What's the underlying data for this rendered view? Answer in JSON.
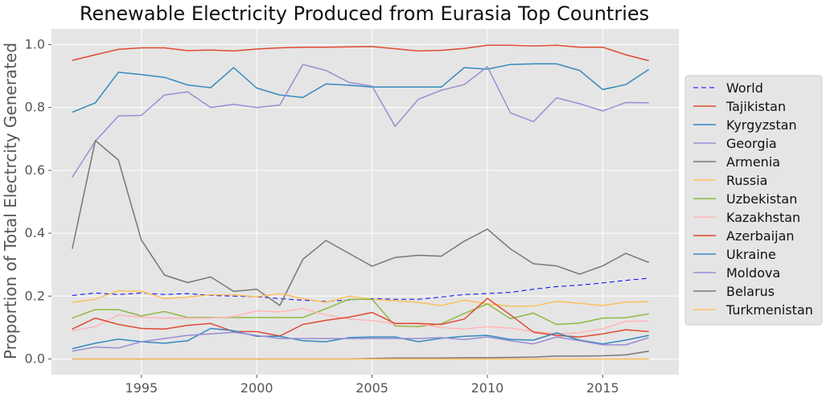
{
  "chart_data": {
    "type": "line",
    "title": "Renewable Electricity Produced from Eurasia Top Countries",
    "xlabel": "",
    "ylabel": "Proportion of Total Electrcity Generated",
    "xlim": [
      1991.1,
      2018.3
    ],
    "ylim": [
      -0.05,
      1.05
    ],
    "xticks": [
      1995,
      2000,
      2005,
      2010,
      2015
    ],
    "yticks": [
      0.0,
      0.2,
      0.4,
      0.6,
      0.8,
      1.0
    ],
    "ytick_labels": [
      "0.0",
      "0.2",
      "0.4",
      "0.6",
      "0.8",
      "1.0"
    ],
    "legend_position": "right",
    "x": [
      1992,
      1993,
      1994,
      1995,
      1996,
      1997,
      1998,
      1999,
      2000,
      2001,
      2002,
      2003,
      2004,
      2005,
      2006,
      2007,
      2008,
      2009,
      2010,
      2011,
      2012,
      2013,
      2014,
      2015,
      2016,
      2017
    ],
    "series": [
      {
        "name": "World",
        "color": "#0000ff",
        "dashed": true,
        "values": [
          0.202,
          0.21,
          0.205,
          0.21,
          0.205,
          0.208,
          0.202,
          0.2,
          0.198,
          0.192,
          0.187,
          0.183,
          0.188,
          0.192,
          0.19,
          0.19,
          0.197,
          0.205,
          0.208,
          0.212,
          0.222,
          0.23,
          0.235,
          0.242,
          0.25,
          0.257
        ]
      },
      {
        "name": "Tajikistan",
        "color": "#E24A33",
        "values": [
          0.95,
          0.968,
          0.985,
          0.99,
          0.99,
          0.981,
          0.983,
          0.98,
          0.986,
          0.99,
          0.992,
          0.992,
          0.993,
          0.994,
          0.987,
          0.98,
          0.982,
          0.988,
          0.998,
          0.998,
          0.996,
          0.998,
          0.992,
          0.992,
          0.968,
          0.949
        ]
      },
      {
        "name": "Kyrgyzstan",
        "color": "#348ABD",
        "values": [
          0.785,
          0.815,
          0.912,
          0.905,
          0.896,
          0.872,
          0.863,
          0.927,
          0.862,
          0.84,
          0.832,
          0.875,
          0.871,
          0.865,
          0.865,
          0.865,
          0.865,
          0.927,
          0.922,
          0.937,
          0.939,
          0.939,
          0.918,
          0.857,
          0.873,
          0.921
        ]
      },
      {
        "name": "Georgia",
        "color": "#988ED5",
        "values": [
          0.578,
          0.693,
          0.773,
          0.775,
          0.84,
          0.85,
          0.8,
          0.81,
          0.8,
          0.808,
          0.937,
          0.918,
          0.88,
          0.868,
          0.74,
          0.826,
          0.855,
          0.873,
          0.93,
          0.783,
          0.755,
          0.831,
          0.812,
          0.789,
          0.816,
          0.815
        ]
      },
      {
        "name": "Armenia",
        "color": "#777777",
        "values": [
          0.35,
          0.695,
          0.633,
          0.378,
          0.267,
          0.243,
          0.261,
          0.215,
          0.222,
          0.17,
          0.317,
          0.377,
          0.336,
          0.295,
          0.323,
          0.33,
          0.327,
          0.375,
          0.413,
          0.35,
          0.303,
          0.296,
          0.27,
          0.296,
          0.336,
          0.307
        ]
      },
      {
        "name": "Russia",
        "color": "#FBC15E",
        "values": [
          0.18,
          0.19,
          0.217,
          0.215,
          0.192,
          0.197,
          0.204,
          0.204,
          0.198,
          0.208,
          0.192,
          0.18,
          0.2,
          0.19,
          0.185,
          0.18,
          0.17,
          0.187,
          0.175,
          0.168,
          0.168,
          0.183,
          0.177,
          0.17,
          0.181,
          0.182
        ]
      },
      {
        "name": "Uzbekistan",
        "color": "#8EBA42",
        "values": [
          0.13,
          0.157,
          0.157,
          0.137,
          0.151,
          0.132,
          0.132,
          0.132,
          0.132,
          0.132,
          0.132,
          0.16,
          0.19,
          0.19,
          0.105,
          0.103,
          0.112,
          0.145,
          0.175,
          0.128,
          0.146,
          0.11,
          0.114,
          0.13,
          0.131,
          0.144
        ]
      },
      {
        "name": "Kazakhstan",
        "color": "#FFB5B8",
        "values": [
          0.09,
          0.103,
          0.14,
          0.133,
          0.13,
          0.13,
          0.13,
          0.135,
          0.153,
          0.15,
          0.16,
          0.14,
          0.127,
          0.122,
          0.112,
          0.112,
          0.1,
          0.095,
          0.103,
          0.098,
          0.088,
          0.08,
          0.084,
          0.096,
          0.12,
          0.12
        ]
      },
      {
        "name": "Azerbaijan",
        "color": "#E24A33",
        "values": [
          0.095,
          0.13,
          0.11,
          0.097,
          0.095,
          0.107,
          0.113,
          0.087,
          0.087,
          0.073,
          0.11,
          0.123,
          0.133,
          0.148,
          0.113,
          0.113,
          0.11,
          0.127,
          0.193,
          0.14,
          0.085,
          0.075,
          0.07,
          0.08,
          0.093,
          0.087
        ]
      },
      {
        "name": "Ukraine",
        "color": "#348ABD",
        "values": [
          0.033,
          0.05,
          0.063,
          0.055,
          0.05,
          0.058,
          0.097,
          0.09,
          0.072,
          0.072,
          0.058,
          0.055,
          0.068,
          0.07,
          0.07,
          0.055,
          0.066,
          0.072,
          0.075,
          0.062,
          0.06,
          0.083,
          0.06,
          0.048,
          0.06,
          0.075
        ]
      },
      {
        "name": "Moldova",
        "color": "#988ED5",
        "values": [
          0.025,
          0.038,
          0.035,
          0.055,
          0.065,
          0.075,
          0.08,
          0.085,
          0.075,
          0.065,
          0.065,
          0.065,
          0.065,
          0.065,
          0.065,
          0.065,
          0.068,
          0.062,
          0.07,
          0.058,
          0.048,
          0.07,
          0.058,
          0.045,
          0.045,
          0.068
        ]
      },
      {
        "name": "Belarus",
        "color": "#777777",
        "values": [
          0.0,
          0.0,
          0.0,
          0.0,
          0.0,
          0.0,
          0.0,
          0.0,
          0.0,
          0.0,
          0.0,
          0.0,
          0.0,
          0.002,
          0.003,
          0.003,
          0.003,
          0.004,
          0.004,
          0.005,
          0.006,
          0.009,
          0.009,
          0.01,
          0.013,
          0.025
        ]
      },
      {
        "name": "Turkmenistan",
        "color": "#FBC15E",
        "values": [
          0.0,
          0.0,
          0.0,
          0.0,
          0.0,
          0.0,
          0.0,
          0.0,
          0.0,
          0.0,
          0.0,
          0.0,
          0.0,
          0.0,
          0.0,
          0.0,
          0.0,
          0.0,
          0.0,
          0.0,
          0.0,
          0.0,
          0.0,
          0.0,
          0.0,
          0.0
        ]
      }
    ]
  }
}
